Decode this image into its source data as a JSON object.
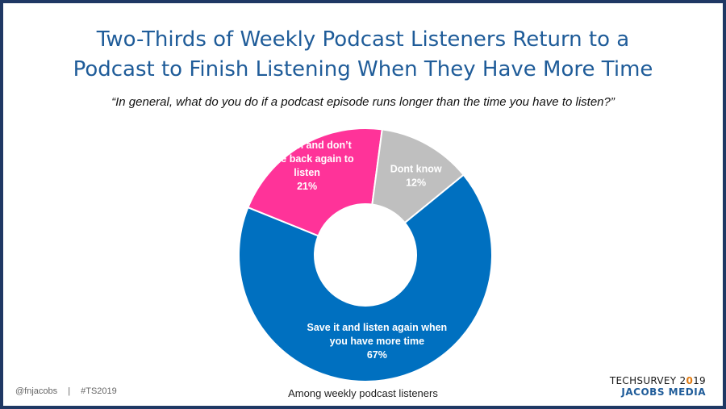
{
  "title_line1": "Two-Thirds of Weekly Podcast Listeners Return to a",
  "title_line2": "Podcast to Finish Listening When They Have More Time",
  "subtitle": "“In general, what do you do if a podcast episode runs longer than the time you have to listen?”",
  "footnote": "Among weekly podcast listeners",
  "footer": {
    "handle": "@fnjacobs",
    "separator": "|",
    "hashtag": "#TS2019"
  },
  "logo": {
    "line1_prefix": "TECHSURVEY 2",
    "line1_accent": "0",
    "line1_suffix": "19",
    "line2": "JACOBS MEDIA"
  },
  "colors": {
    "save": "#0070c0",
    "move_on": "#ff3399",
    "dont_know": "#bfbfbf",
    "title": "#1f5c99",
    "border": "#1f3864"
  },
  "chart_data": {
    "type": "pie",
    "donut": true,
    "series": [
      {
        "label_lines": [
          "Move on and don’t",
          "come back again to",
          "listen"
        ],
        "percent_label": "21%",
        "value": 21,
        "color": "#ff3399"
      },
      {
        "label_lines": [
          "Dont know"
        ],
        "percent_label": "12%",
        "value": 12,
        "color": "#bfbfbf"
      },
      {
        "label_lines": [
          "Save it and listen again when",
          "you have more time"
        ],
        "percent_label": "67%",
        "value": 67,
        "color": "#0070c0"
      }
    ]
  }
}
